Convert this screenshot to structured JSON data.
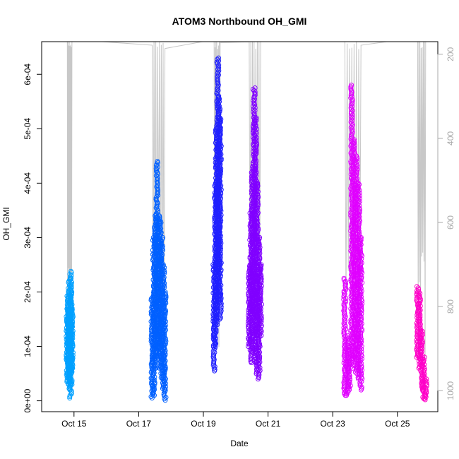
{
  "chart_data": {
    "type": "scatter",
    "title": "ATOM3 Northbound OH_GMI",
    "xlabel": "Date",
    "ylabel": "OH_GMI",
    "x_axis": {
      "min": "2017-10-14T00:00",
      "max": "2017-10-26T06:00",
      "ticks": [
        {
          "date": "2017-10-15T00:00",
          "label": "Oct 15"
        },
        {
          "date": "2017-10-17T00:00",
          "label": "Oct 17"
        },
        {
          "date": "2017-10-19T00:00",
          "label": "Oct 19"
        },
        {
          "date": "2017-10-21T00:00",
          "label": "Oct 21"
        },
        {
          "date": "2017-10-23T00:00",
          "label": "Oct 23"
        },
        {
          "date": "2017-10-25T00:00",
          "label": "Oct 25"
        }
      ]
    },
    "y_axis": {
      "min": -2e-05,
      "max": 0.00066,
      "ticks": [
        {
          "value": 0,
          "label": "0e+00"
        },
        {
          "value": 0.0001,
          "label": "1e-04"
        },
        {
          "value": 0.0002,
          "label": "2e-04"
        },
        {
          "value": 0.0003,
          "label": "3e-04"
        },
        {
          "value": 0.0004,
          "label": "4e-04"
        },
        {
          "value": 0.0005,
          "label": "5e-04"
        },
        {
          "value": 0.0006,
          "label": "6e-04"
        }
      ]
    },
    "y2_axis": {
      "reversed": true,
      "min": 170,
      "max": 1050,
      "color": "#aaaaaa",
      "ticks": [
        {
          "value": 200,
          "label": "200"
        },
        {
          "value": 400,
          "label": "400"
        },
        {
          "value": 600,
          "label": "600"
        },
        {
          "value": 800,
          "label": "800"
        },
        {
          "value": 1000,
          "label": "1000"
        }
      ]
    },
    "grid": false,
    "line_color": "#c8c8c8",
    "series": [
      {
        "color": "#00a0ff",
        "x_start": "2017-10-14T19:00",
        "x_end": "2017-10-14T22:30",
        "points": [
          [
            4.5e-05,
            0.00016
          ],
          [
            3e-05,
            0.0002
          ],
          [
            4e-05,
            0.00018
          ],
          [
            2e-05,
            0.000225
          ],
          [
            5e-05,
            0.00015
          ],
          [
            5e-06,
            0.000238
          ],
          [
            3e-05,
            0.0002
          ],
          [
            6e-05,
            0.00017
          ]
        ]
      },
      {
        "color": "#0060ff",
        "x_start": "2017-10-17T10:00",
        "x_end": "2017-10-17T19:30",
        "points": [
          [
            5e-06,
            0.00019
          ],
          [
            1e-05,
            0.0003
          ],
          [
            6e-05,
            0.00034
          ],
          [
            8e-05,
            0.00044
          ],
          [
            0.0001,
            0.00034
          ],
          [
            6e-05,
            0.00033
          ],
          [
            4e-05,
            0.0003
          ],
          [
            2e-05,
            0.00025
          ],
          [
            1e-06,
            0.0002
          ]
        ]
      },
      {
        "color": "#2020ff",
        "x_start": "2017-10-19T08:00",
        "x_end": "2017-10-19T12:30",
        "points": [
          [
            5.5e-05,
            0.00025
          ],
          [
            0.0001,
            0.0004
          ],
          [
            0.00014,
            0.0005
          ],
          [
            0.00025,
            0.00063
          ],
          [
            0.00018,
            0.00056
          ],
          [
            0.00015,
            0.00052
          ]
        ]
      },
      {
        "color": "#8000ff",
        "x_start": "2017-10-20T10:00",
        "x_end": "2017-10-20T18:30",
        "points": [
          [
            0.0001,
            0.00025
          ],
          [
            7e-05,
            0.00035
          ],
          [
            9e-05,
            0.00043
          ],
          [
            0.00016,
            0.000575
          ],
          [
            7e-05,
            0.00052
          ],
          [
            5e-05,
            0.0004
          ],
          [
            4e-05,
            0.0003
          ],
          [
            0.00012,
            0.00025
          ]
        ]
      },
      {
        "color": "#e000ff",
        "x_start": "2017-10-23T09:00",
        "x_end": "2017-10-23T21:00",
        "points": [
          [
            1e-05,
            0.000225
          ],
          [
            1e-05,
            0.00012
          ],
          [
            2e-05,
            0.0001
          ],
          [
            6e-05,
            0.00058
          ],
          [
            8e-05,
            0.00048
          ],
          [
            5e-05,
            0.00045
          ],
          [
            4e-05,
            0.0004
          ],
          [
            2e-05,
            0.0003
          ]
        ]
      },
      {
        "color": "#ff00c8",
        "x_start": "2017-10-25T15:00",
        "x_end": "2017-10-25T21:00",
        "points": [
          [
            8e-05,
            0.00021
          ],
          [
            6e-05,
            0.0002
          ],
          [
            2e-05,
            0.00013
          ],
          [
            4e-06,
            8e-05
          ],
          [
            2e-06,
            4e-05
          ]
        ]
      }
    ]
  }
}
